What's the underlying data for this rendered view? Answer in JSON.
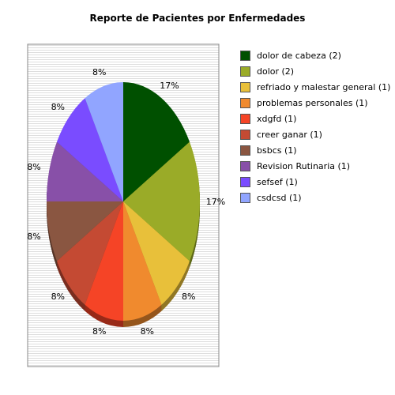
{
  "chart_data": {
    "type": "pie",
    "title": "Reporte de Pacientes por Enfermedades",
    "categories": [
      "dolor de cabeza",
      "dolor",
      "refriado y malestar general",
      "problemas personales",
      "xdgfd",
      "creer ganar",
      "bsbcs",
      "Revision Rutinaria",
      "sefsef",
      "csdcsd"
    ],
    "values": [
      2,
      2,
      1,
      1,
      1,
      1,
      1,
      1,
      1,
      1
    ],
    "legend_labels": [
      "dolor de cabeza (2)",
      "dolor (2)",
      "refriado y malestar general (1)",
      "problemas personales (1)",
      "xdgfd (1)",
      "creer ganar (1)",
      "bsbcs (1)",
      "Revision Rutinaria (1)",
      "sefsef (1)",
      "csdcsd (1)"
    ],
    "percent_labels": [
      "17%",
      "17%",
      "8%",
      "8%",
      "8%",
      "8%",
      "8%",
      "8%",
      "8%",
      "8%"
    ],
    "colors": [
      "#005000",
      "#9aab28",
      "#e8c03a",
      "#f08a2e",
      "#f54426",
      "#c44a33",
      "#8a5641",
      "#8850a8",
      "#7a4cff",
      "#91a5ff"
    ],
    "legend_position": "right",
    "start_angle_deg": 90,
    "direction": "clockwise"
  }
}
